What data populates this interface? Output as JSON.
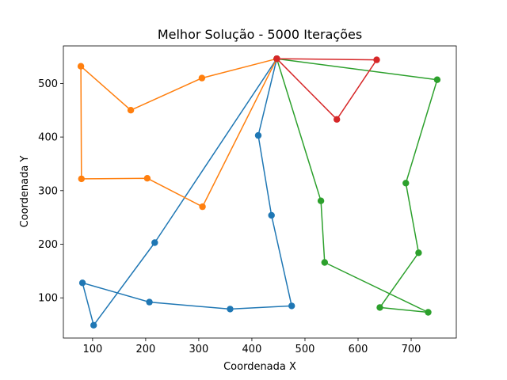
{
  "chart_data": {
    "type": "line",
    "title": "Melhor Solução - 5000 Iterações",
    "xlabel": "Coordenada X",
    "ylabel": "Coordenada Y",
    "xlim": [
      45,
      785
    ],
    "ylim": [
      25,
      570
    ],
    "xticks": [
      100,
      200,
      300,
      400,
      500,
      600,
      700
    ],
    "yticks": [
      100,
      200,
      300,
      400,
      500
    ],
    "grid": false,
    "markers": "circle",
    "series": [
      {
        "color": "#1f77b4",
        "points": [
          [
            447,
            546
          ],
          [
            412,
            403
          ],
          [
            437,
            254
          ],
          [
            475,
            85
          ],
          [
            359,
            79
          ],
          [
            207,
            92
          ],
          [
            81,
            128
          ],
          [
            102,
            49
          ],
          [
            217,
            203
          ],
          [
            447,
            546
          ]
        ]
      },
      {
        "color": "#ff7f0e",
        "points": [
          [
            447,
            546
          ],
          [
            306,
            510
          ],
          [
            172,
            450
          ],
          [
            78,
            532
          ],
          [
            79,
            322
          ],
          [
            203,
            323
          ],
          [
            307,
            270
          ],
          [
            447,
            546
          ]
        ]
      },
      {
        "color": "#2ca02c",
        "points": [
          [
            447,
            546
          ],
          [
            749,
            507
          ],
          [
            690,
            314
          ],
          [
            714,
            184
          ],
          [
            641,
            82
          ],
          [
            732,
            73
          ],
          [
            537,
            166
          ],
          [
            530,
            281
          ],
          [
            447,
            546
          ]
        ]
      },
      {
        "color": "#d62728",
        "points": [
          [
            447,
            546
          ],
          [
            635,
            544
          ],
          [
            560,
            433
          ],
          [
            447,
            546
          ]
        ]
      }
    ]
  }
}
